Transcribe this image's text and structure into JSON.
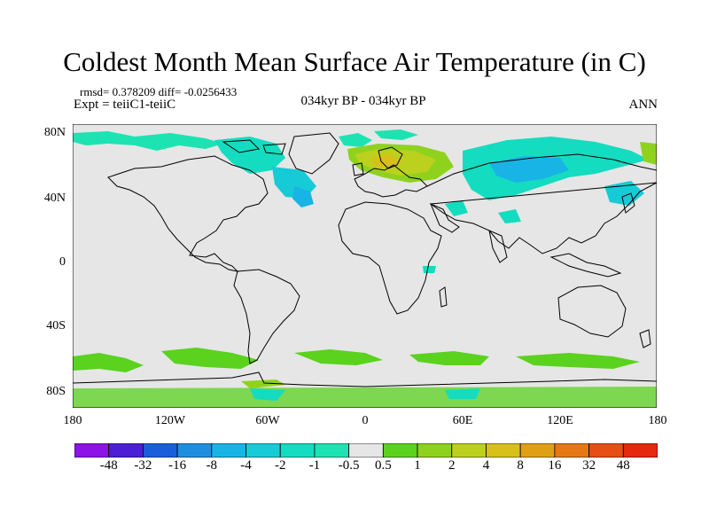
{
  "header": {
    "title": "Coldest Month Mean Surface Air Temperature (in C)",
    "stats": "rmsd= 0.378209 diff= -0.0256433",
    "experiment": "Expt = teiiC1-teiiC",
    "period": "034kyr BP - 034kyr BP",
    "season": "ANN"
  },
  "axes": {
    "y_ticks": [
      "80N",
      "40N",
      "0",
      "40S",
      "80S"
    ],
    "x_ticks": [
      "180",
      "120W",
      "60W",
      "0",
      "60E",
      "120E",
      "180"
    ]
  },
  "colorbar": {
    "labels": [
      "-48",
      "-32",
      "-16",
      "-8",
      "-4",
      "-2",
      "-1",
      "-0.5",
      "0.5",
      "1",
      "2",
      "4",
      "8",
      "16",
      "32",
      "48"
    ],
    "colors": [
      "#8c14e6",
      "#4b1fd6",
      "#1a5fd9",
      "#1e8fe0",
      "#19b4e6",
      "#16cbd6",
      "#14dcc0",
      "#1de3b2",
      "#e6e6e6",
      "#5ad21e",
      "#8fd21e",
      "#bcd01e",
      "#d8c01a",
      "#e0a014",
      "#e67814",
      "#e64e14",
      "#e6280f"
    ]
  },
  "map_colors": {
    "ocean_land_background": "#e6e6e6",
    "coastline": "#000000"
  }
}
